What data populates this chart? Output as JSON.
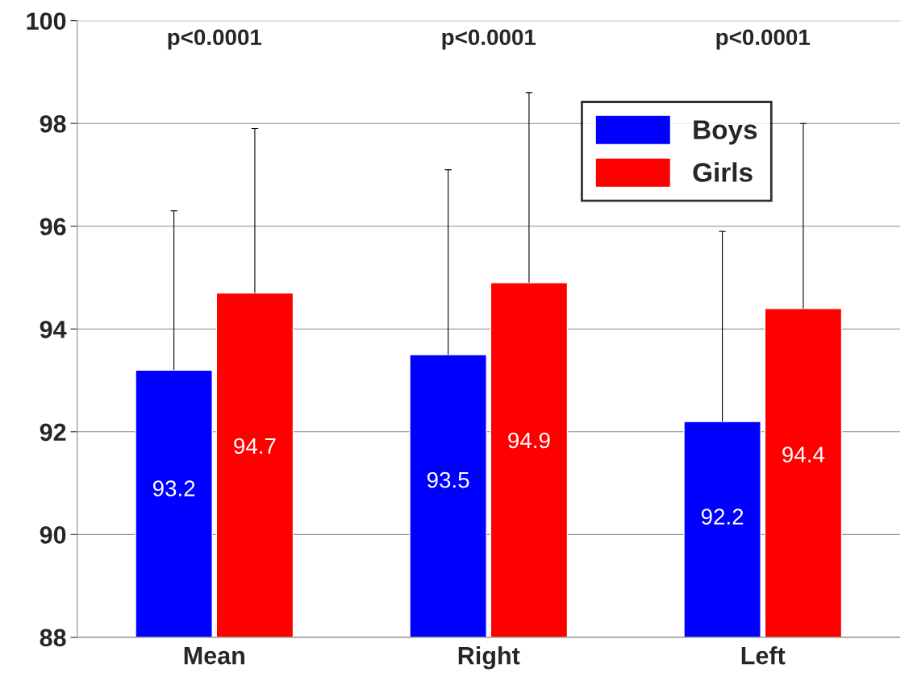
{
  "chart_data": {
    "type": "bar",
    "categories": [
      "Mean",
      "Right",
      "Left"
    ],
    "series": [
      {
        "name": "Boys",
        "color": "#0000ff",
        "values": [
          93.2,
          93.5,
          92.2
        ],
        "errors": [
          [
            93.2,
            96.3
          ],
          [
            93.5,
            97.1
          ],
          [
            92.2,
            95.9
          ]
        ]
      },
      {
        "name": "Girls",
        "color": "#ff0000",
        "values": [
          94.7,
          94.9,
          94.4
        ],
        "errors": [
          [
            94.7,
            97.9
          ],
          [
            94.9,
            98.6
          ],
          [
            94.4,
            98.0
          ]
        ]
      }
    ],
    "ylim": [
      88,
      100
    ],
    "yticks": [
      88,
      90,
      92,
      94,
      96,
      98,
      100
    ],
    "grid": "y",
    "legend": "top right",
    "data_labels": true,
    "annotations": [
      "p<0.0001",
      "p<0.0001",
      "p<0.0001"
    ]
  }
}
